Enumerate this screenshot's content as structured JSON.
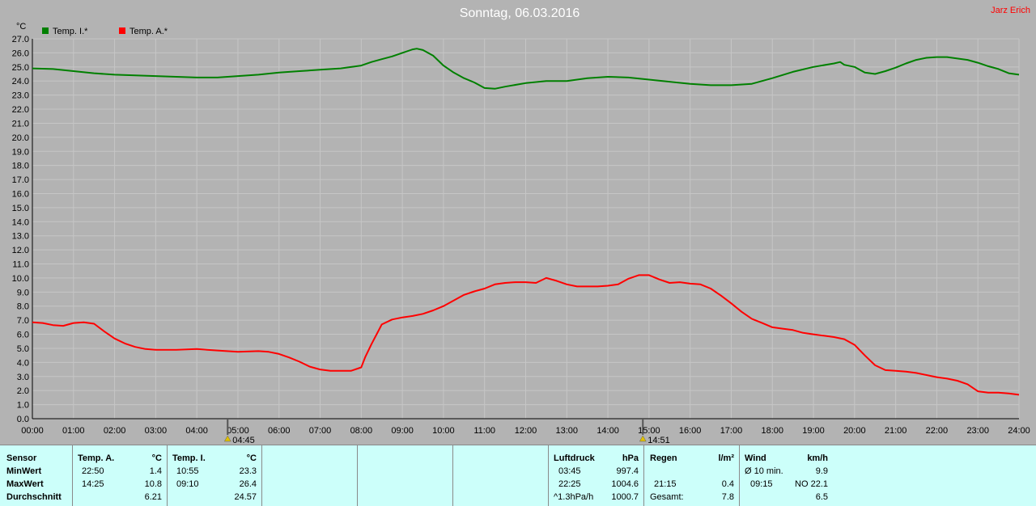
{
  "title": "Sonntag, 06.03.2016",
  "author": "Jarz Erich",
  "colors": {
    "inside": "#008000",
    "outside": "#ff0000",
    "background": "#b3b3b3",
    "grid": "#c6c6c6",
    "stats_bg": "#ccfffa"
  },
  "chart_data": {
    "type": "line",
    "ylabel": "°C",
    "ylim": [
      0,
      27
    ],
    "ytick_step": 1,
    "xlim": [
      0,
      24
    ],
    "x_ticks": [
      "00:00",
      "01:00",
      "02:00",
      "03:00",
      "04:00",
      "05:00",
      "06:00",
      "07:00",
      "08:00",
      "09:00",
      "10:00",
      "11:00",
      "12:00",
      "13:00",
      "14:00",
      "15:00",
      "16:00",
      "17:00",
      "18:00",
      "19:00",
      "20:00",
      "21:00",
      "22:00",
      "23:00",
      "24:00"
    ],
    "grid": true,
    "legend_placement": "top-left",
    "markers": [
      {
        "time": 4.75,
        "label": "04:45",
        "icon": "sunrise-icon"
      },
      {
        "time": 14.85,
        "label": "14:51",
        "icon": "sunset-icon"
      }
    ],
    "series": [
      {
        "name": "Temp. I.*",
        "color": "#008000",
        "x": [
          0,
          0.5,
          1,
          1.5,
          2,
          2.5,
          3,
          3.5,
          4,
          4.5,
          5,
          5.5,
          6,
          6.5,
          7,
          7.5,
          8,
          8.25,
          8.5,
          8.75,
          9,
          9.25,
          9.35,
          9.5,
          9.75,
          10,
          10.25,
          10.5,
          10.75,
          11,
          11.25,
          11.5,
          12,
          12.5,
          13,
          13.5,
          14,
          14.5,
          15,
          15.5,
          16,
          16.5,
          17,
          17.5,
          18,
          18.5,
          19,
          19.5,
          19.65,
          19.75,
          20,
          20.25,
          20.5,
          20.75,
          21,
          21.25,
          21.5,
          21.75,
          22,
          22.25,
          22.5,
          22.75,
          23,
          23.25,
          23.5,
          23.75,
          24
        ],
        "values": [
          24.9,
          24.85,
          24.7,
          24.55,
          24.45,
          24.4,
          24.35,
          24.3,
          24.25,
          24.25,
          24.35,
          24.45,
          24.6,
          24.7,
          24.8,
          24.9,
          25.1,
          25.35,
          25.55,
          25.75,
          26.0,
          26.25,
          26.3,
          26.2,
          25.8,
          25.1,
          24.6,
          24.2,
          23.9,
          23.5,
          23.45,
          23.6,
          23.85,
          24.0,
          24.0,
          24.2,
          24.3,
          24.25,
          24.1,
          23.95,
          23.8,
          23.7,
          23.7,
          23.8,
          24.2,
          24.65,
          25.0,
          25.25,
          25.35,
          25.15,
          25.0,
          24.6,
          24.5,
          24.7,
          24.95,
          25.25,
          25.5,
          25.65,
          25.7,
          25.7,
          25.6,
          25.5,
          25.3,
          25.05,
          24.85,
          24.55,
          24.45
        ]
      },
      {
        "name": "Temp. A.*",
        "color": "#ff0000",
        "x": [
          0,
          0.25,
          0.5,
          0.75,
          1,
          1.25,
          1.5,
          1.75,
          2,
          2.25,
          2.5,
          2.75,
          3,
          3.5,
          4,
          4.5,
          5,
          5.5,
          5.75,
          6,
          6.25,
          6.5,
          6.75,
          7,
          7.25,
          7.5,
          7.75,
          8,
          8.1,
          8.25,
          8.5,
          8.75,
          9,
          9.25,
          9.5,
          9.75,
          10,
          10.25,
          10.5,
          10.75,
          11,
          11.25,
          11.5,
          11.75,
          12,
          12.25,
          12.5,
          12.75,
          13,
          13.25,
          13.5,
          13.75,
          14,
          14.25,
          14.5,
          14.75,
          15,
          15.25,
          15.5,
          15.75,
          16,
          16.25,
          16.5,
          16.75,
          17,
          17.25,
          17.5,
          17.75,
          18,
          18.25,
          18.5,
          18.75,
          19,
          19.25,
          19.5,
          19.75,
          20,
          20.25,
          20.5,
          20.75,
          21,
          21.25,
          21.5,
          21.75,
          22,
          22.25,
          22.5,
          22.75,
          23,
          23.25,
          23.5,
          23.75,
          24
        ],
        "values": [
          6.85,
          6.8,
          6.65,
          6.6,
          6.8,
          6.85,
          6.75,
          6.2,
          5.7,
          5.35,
          5.1,
          4.95,
          4.9,
          4.9,
          4.95,
          4.85,
          4.75,
          4.8,
          4.75,
          4.6,
          4.35,
          4.05,
          3.7,
          3.5,
          3.4,
          3.4,
          3.4,
          3.65,
          4.4,
          5.3,
          6.7,
          7.05,
          7.2,
          7.3,
          7.45,
          7.7,
          8.0,
          8.4,
          8.8,
          9.05,
          9.25,
          9.55,
          9.65,
          9.7,
          9.7,
          9.65,
          10.0,
          9.8,
          9.55,
          9.4,
          9.4,
          9.4,
          9.45,
          9.55,
          9.95,
          10.2,
          10.2,
          9.9,
          9.65,
          9.7,
          9.6,
          9.55,
          9.25,
          8.75,
          8.2,
          7.6,
          7.1,
          6.8,
          6.5,
          6.4,
          6.3,
          6.1,
          6.0,
          5.9,
          5.8,
          5.65,
          5.25,
          4.5,
          3.8,
          3.45,
          3.4,
          3.35,
          3.25,
          3.1,
          2.95,
          2.85,
          2.7,
          2.45,
          1.95,
          1.85,
          1.85,
          1.8,
          1.7
        ]
      }
    ]
  },
  "stats": {
    "sensor": {
      "header": "Sensor",
      "rows": [
        "MinWert",
        "MaxWert",
        "Durchschnitt"
      ]
    },
    "temp_a": {
      "header": "Temp. A.",
      "unit": "°C",
      "min_time": "22:50",
      "min": "1.4",
      "max_time": "14:25",
      "max": "10.8",
      "avg": "6.21"
    },
    "temp_i": {
      "header": "Temp. I.",
      "unit": "°C",
      "min_time": "10:55",
      "min": "23.3",
      "max_time": "09:10",
      "max": "26.4",
      "avg": "24.57"
    },
    "luftdruck": {
      "header": "Luftdruck",
      "unit": "hPa",
      "min_time": "03:45",
      "min": "997.4",
      "max_time": "22:25",
      "max": "1004.6",
      "trend": "^1.3hPa/h",
      "avg": "1000.7"
    },
    "regen": {
      "header": "Regen",
      "unit": "l/m²",
      "max_time": "21:15",
      "max": "0.4",
      "total_label": "Gesamt:",
      "total": "7.8"
    },
    "wind": {
      "header": "Wind",
      "unit": "km/h",
      "avg_label": "Ø 10 min.",
      "avg10": "9.9",
      "max_time": "09:15",
      "max": "NO 22.1",
      "avg": "6.5"
    }
  }
}
